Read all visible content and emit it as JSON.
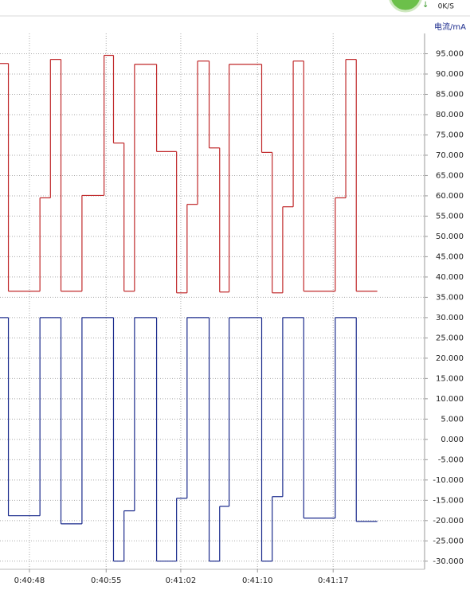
{
  "chart_data": {
    "type": "step",
    "y_label": "电流/mA",
    "status_text": "0K/S",
    "xlim": [
      2446.2,
      2486.6
    ],
    "xticks": [
      {
        "value": 2449.0,
        "label": "0:40:48"
      },
      {
        "value": 2456.3,
        "label": "0:40:55"
      },
      {
        "value": 2463.4,
        "label": "0:41:02"
      },
      {
        "value": 2470.7,
        "label": "0:41:10"
      },
      {
        "value": 2477.9,
        "label": "0:41:17"
      }
    ],
    "ylim": [
      -32,
      100
    ],
    "yticks": [
      {
        "value": 95,
        "label": "95.000"
      },
      {
        "value": 90,
        "label": "90.000"
      },
      {
        "value": 85,
        "label": "85.000"
      },
      {
        "value": 80,
        "label": "80.000"
      },
      {
        "value": 75,
        "label": "75.000"
      },
      {
        "value": 70,
        "label": "70.000"
      },
      {
        "value": 65,
        "label": "65.000"
      },
      {
        "value": 60,
        "label": "60.000"
      },
      {
        "value": 55,
        "label": "55.000"
      },
      {
        "value": 50,
        "label": "50.000"
      },
      {
        "value": 45,
        "label": "45.000"
      },
      {
        "value": 40,
        "label": "40.000"
      },
      {
        "value": 35,
        "label": "35.000"
      },
      {
        "value": 30,
        "label": "30.000"
      },
      {
        "value": 25,
        "label": "25.000"
      },
      {
        "value": 20,
        "label": "20.000"
      },
      {
        "value": 15,
        "label": "15.000"
      },
      {
        "value": 10,
        "label": "10.000"
      },
      {
        "value": 5,
        "label": "5.000"
      },
      {
        "value": 0,
        "label": "0.000"
      },
      {
        "value": -5,
        "label": "-5.000"
      },
      {
        "value": -10,
        "label": "-10.000"
      },
      {
        "value": -15,
        "label": "-15.000"
      },
      {
        "value": -20,
        "label": "-20.000"
      },
      {
        "value": -25,
        "label": "-25.000"
      },
      {
        "value": -30,
        "label": "-30.000"
      }
    ],
    "grid": true,
    "series": [
      {
        "color": "#c0282a",
        "x": [
          2446.2,
          2447.0,
          2450.0,
          2451.0,
          2452.0,
          2454.0,
          2456.1,
          2457.0,
          2458.0,
          2459.0,
          2461.1,
          2463.0,
          2464.0,
          2465.0,
          2466.1,
          2467.1,
          2468.0,
          2471.1,
          2472.1,
          2473.1,
          2474.1,
          2475.1,
          2478.1,
          2479.1,
          2480.1,
          2482.1
        ],
        "values": [
          92.6,
          36.5,
          59.5,
          93.6,
          36.5,
          60.1,
          94.6,
          73.0,
          36.5,
          92.4,
          70.9,
          36.1,
          57.9,
          93.2,
          71.8,
          36.3,
          92.4,
          70.7,
          36.1,
          57.3,
          93.2,
          36.5,
          59.5,
          93.6,
          36.5,
          36.5
        ]
      },
      {
        "color": "#1a2a8c",
        "x": [
          2446.2,
          2447.0,
          2450.0,
          2452.0,
          2454.0,
          2457.0,
          2458.0,
          2459.0,
          2461.1,
          2463.0,
          2464.0,
          2466.1,
          2467.1,
          2468.0,
          2471.1,
          2472.1,
          2473.1,
          2475.1,
          2478.1,
          2480.1,
          2482.1
        ],
        "values": [
          30,
          -18.8,
          30,
          -20.8,
          30,
          -30,
          -17.6,
          30,
          -30,
          -14.5,
          30,
          -30,
          -16.5,
          30,
          -30,
          -14.1,
          30,
          -19.4,
          30,
          -20.2,
          -20.2
        ]
      }
    ]
  }
}
